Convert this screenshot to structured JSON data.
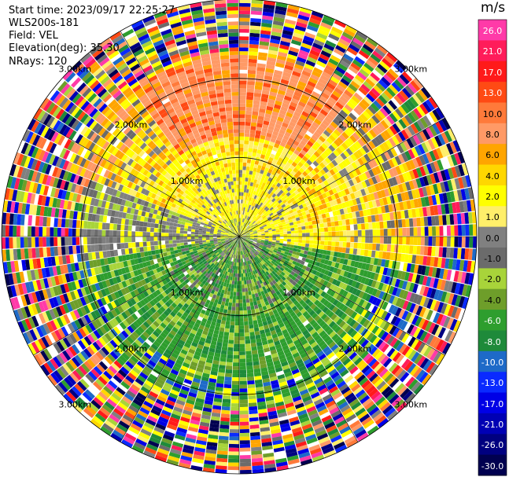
{
  "header": {
    "start_time": "Start time: 2023/09/17 22:25:27",
    "instrument": "WLS200s-181",
    "field": "Field: VEL",
    "elevation": "Elevation(deg): 35.30",
    "nrays": "NRays: 120"
  },
  "colorbar": {
    "unit": "m/s",
    "labels": [
      "26.0",
      "21.0",
      "17.0",
      "13.0",
      "10.0",
      "8.0",
      "6.0",
      "4.0",
      "2.0",
      "1.0",
      "0.0",
      "-1.0",
      "-2.0",
      "-4.0",
      "-6.0",
      "-8.0",
      "-10.0",
      "-13.0",
      "-17.0",
      "-21.0",
      "-26.0",
      "-30.0"
    ],
    "colors": [
      "#ff3aa8",
      "#ff1c5a",
      "#ff1a1a",
      "#ff4a14",
      "#ff7a3a",
      "#ff9a66",
      "#ffa500",
      "#ffd700",
      "#ffff00",
      "#ffef6a",
      "#808080",
      "#6b6b6b",
      "#a8d43a",
      "#6e9e2a",
      "#2e9e2e",
      "#1e8a3a",
      "#1e6ac8",
      "#0a2aff",
      "#0000e6",
      "#0000b4",
      "#000080",
      "#000050"
    ]
  },
  "chart_data": {
    "type": "ppi",
    "field": "VEL",
    "units": "m/s",
    "elevation_deg": 35.3,
    "nrays": 120,
    "range_max_km": 3.0,
    "range_rings_km": [
      1.0,
      2.0,
      3.0
    ],
    "ring_labels": [
      "1.00km",
      "2.00km",
      "3.00km"
    ],
    "spokes_deg": [
      0,
      30,
      60,
      90,
      120,
      150,
      180,
      210,
      240,
      270,
      300,
      330
    ],
    "zones": [
      {
        "name": "near-north",
        "azimuth_deg": [
          280,
          80
        ],
        "range_km": [
          0,
          1.6
        ],
        "dominant_velocity_ms": 2.0
      },
      {
        "name": "mid-north",
        "azimuth_deg": [
          310,
          50
        ],
        "range_km": [
          1.0,
          2.4
        ],
        "dominant_velocity_ms": 8.0
      },
      {
        "name": "west",
        "azimuth_deg": [
          250,
          290
        ],
        "range_km": [
          0.3,
          2.0
        ],
        "dominant_velocity_ms": 0.0
      },
      {
        "name": "south",
        "azimuth_deg": [
          100,
          260
        ],
        "range_km": [
          0,
          2.4
        ],
        "dominant_velocity_ms": -6.0
      },
      {
        "name": "outer-noise",
        "azimuth_deg": [
          0,
          360
        ],
        "range_km": [
          2.3,
          3.0
        ],
        "dominant_velocity_ms": null
      }
    ]
  }
}
